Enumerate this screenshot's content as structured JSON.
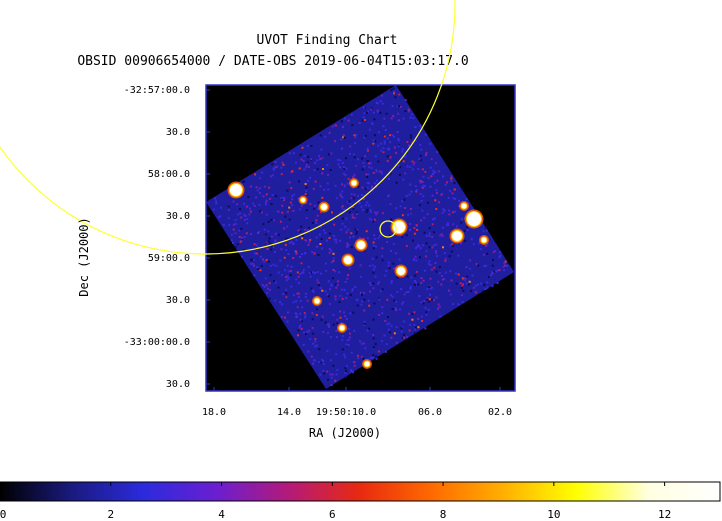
{
  "chart_data": {
    "type": "heatmap",
    "title": "UVOT Finding Chart",
    "subtitle": "OBSID 00906654000 / DATE-OBS 2019-06-04T15:03:17.0",
    "xlabel": "RA (J2000)",
    "ylabel": "Dec (J2000)",
    "x_ticks": [
      "18.0",
      "14.0",
      "19:50:10.0",
      "06.0",
      "02.0"
    ],
    "y_ticks": [
      "-32:57:00.0",
      "30.0",
      "58:00.0",
      "30.0",
      "59:00.0",
      "30.0",
      "-33:00:00.0",
      "30.0"
    ],
    "colorbar": {
      "range": [
        0,
        13
      ],
      "ticks": [
        0,
        2,
        4,
        6,
        8,
        10,
        12
      ],
      "tick_labels": [
        "0",
        "2",
        "4",
        "6",
        "8",
        "10",
        "12"
      ]
    },
    "overlays": [
      "large yellow circle",
      "small yellow circle (source)"
    ],
    "overlay_color": "#ffff33",
    "frame_color": "#3333cc",
    "colormap": [
      "#000000",
      "#1a1a80",
      "#2b2bdd",
      "#6a1fd0",
      "#b31a7a",
      "#e82a10",
      "#ff6a00",
      "#ffb000",
      "#ffff00",
      "#ffffe0",
      "#ffffff"
    ]
  }
}
